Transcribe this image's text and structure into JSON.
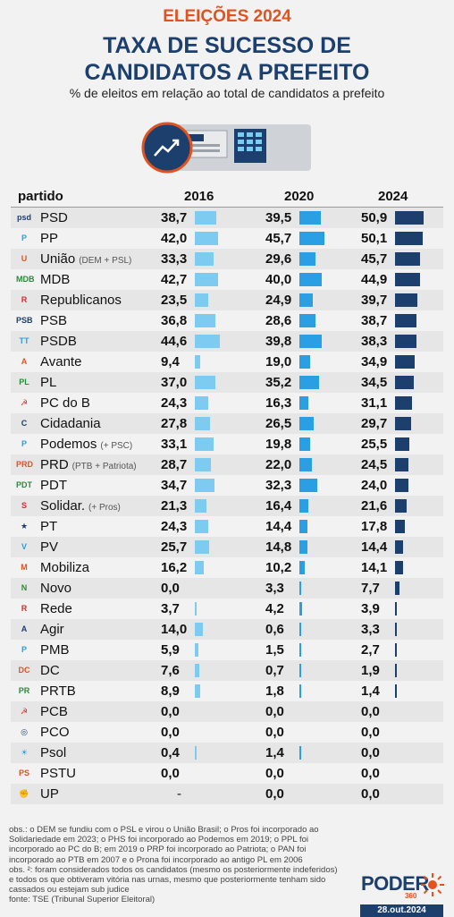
{
  "header": {
    "kicker": "ELEIÇÕES 2024",
    "title_line1": "TAXA DE SUCESSO DE",
    "title_line2": "CANDIDATOS A PREFEITO",
    "subtitle": "% de eleitos em relação ao total de candidatos a prefeito"
  },
  "colors": {
    "y2016": "#7ecbf2",
    "y2020": "#2b9fe3",
    "y2024": "#1c3f6e",
    "accent": "#e0531f"
  },
  "chart_data": {
    "type": "table",
    "columns": [
      "partido",
      "2016",
      "2020",
      "2024"
    ],
    "rows": [
      {
        "party": "PSD",
        "note": "",
        "logo": "psd",
        "v2016": "38,7",
        "v2020": "39,5",
        "v2024": "50,9"
      },
      {
        "party": "PP",
        "note": "",
        "logo": "P",
        "v2016": "42,0",
        "v2020": "45,7",
        "v2024": "50,1"
      },
      {
        "party": "União",
        "note": "(DEM + PSL)",
        "logo": "U",
        "v2016": "33,3",
        "v2020": "29,6",
        "v2024": "45,7"
      },
      {
        "party": "MDB",
        "note": "",
        "logo": "MDB",
        "v2016": "42,7",
        "v2020": "40,0",
        "v2024": "44,9"
      },
      {
        "party": "Republicanos",
        "note": "",
        "logo": "R",
        "v2016": "23,5",
        "v2020": "24,9",
        "v2024": "39,7"
      },
      {
        "party": "PSB",
        "note": "",
        "logo": "PSB",
        "v2016": "36,8",
        "v2020": "28,6",
        "v2024": "38,7"
      },
      {
        "party": "PSDB",
        "note": "",
        "logo": "TT",
        "v2016": "44,6",
        "v2020": "39,8",
        "v2024": "38,3"
      },
      {
        "party": "Avante",
        "note": "",
        "logo": "A",
        "v2016": "9,4",
        "v2020": "19,0",
        "v2024": "34,9"
      },
      {
        "party": "PL",
        "note": "",
        "logo": "PL",
        "v2016": "37,0",
        "v2020": "35,2",
        "v2024": "34,5"
      },
      {
        "party": "PC do B",
        "note": "",
        "logo": "☭",
        "v2016": "24,3",
        "v2020": "16,3",
        "v2024": "31,1"
      },
      {
        "party": "Cidadania",
        "note": "",
        "logo": "C",
        "v2016": "27,8",
        "v2020": "26,5",
        "v2024": "29,7"
      },
      {
        "party": "Podemos",
        "note": "(+ PSC)",
        "logo": "P",
        "v2016": "33,1",
        "v2020": "19,8",
        "v2024": "25,5"
      },
      {
        "party": "PRD",
        "note": "(PTB + Patriota)",
        "logo": "PRD",
        "v2016": "28,7",
        "v2020": "22,0",
        "v2024": "24,5"
      },
      {
        "party": "PDT",
        "note": "",
        "logo": "PDT",
        "v2016": "34,7",
        "v2020": "32,3",
        "v2024": "24,0"
      },
      {
        "party": "Solidar.",
        "note": "(+ Pros)",
        "logo": "S",
        "v2016": "21,3",
        "v2020": "16,4",
        "v2024": "21,6"
      },
      {
        "party": "PT",
        "note": "",
        "logo": "★",
        "v2016": "24,3",
        "v2020": "14,4",
        "v2024": "17,8"
      },
      {
        "party": "PV",
        "note": "",
        "logo": "V",
        "v2016": "25,7",
        "v2020": "14,8",
        "v2024": "14,4"
      },
      {
        "party": "Mobiliza",
        "note": "",
        "logo": "M",
        "v2016": "16,2",
        "v2020": "10,2",
        "v2024": "14,1"
      },
      {
        "party": "Novo",
        "note": "",
        "logo": "N",
        "v2016": "0,0",
        "v2020": "3,3",
        "v2024": "7,7"
      },
      {
        "party": "Rede",
        "note": "",
        "logo": "R",
        "v2016": "3,7",
        "v2020": "4,2",
        "v2024": "3,9"
      },
      {
        "party": "Agir",
        "note": "",
        "logo": "A",
        "v2016": "14,0",
        "v2020": "0,6",
        "v2024": "3,3"
      },
      {
        "party": "PMB",
        "note": "",
        "logo": "P",
        "v2016": "5,9",
        "v2020": "1,5",
        "v2024": "2,7"
      },
      {
        "party": "DC",
        "note": "",
        "logo": "DC",
        "v2016": "7,6",
        "v2020": "0,7",
        "v2024": "1,9"
      },
      {
        "party": "PRTB",
        "note": "",
        "logo": "PR",
        "v2016": "8,9",
        "v2020": "1,8",
        "v2024": "1,4"
      },
      {
        "party": "PCB",
        "note": "",
        "logo": "☭",
        "v2016": "0,0",
        "v2020": "0,0",
        "v2024": "0,0"
      },
      {
        "party": "PCO",
        "note": "",
        "logo": "◎",
        "v2016": "0,0",
        "v2020": "0,0",
        "v2024": "0,0"
      },
      {
        "party": "Psol",
        "note": "",
        "logo": "☀",
        "v2016": "0,4",
        "v2020": "1,4",
        "v2024": "0,0"
      },
      {
        "party": "PSTU",
        "note": "",
        "logo": "PS",
        "v2016": "0,0",
        "v2020": "0,0",
        "v2024": "0,0"
      },
      {
        "party": "UP",
        "note": "",
        "logo": "✊",
        "v2016": "-",
        "v2020": "0,0",
        "v2024": "0,0"
      }
    ]
  },
  "footer": {
    "notes": [
      "obs.: o DEM se fundiu com o PSL e virou o União Brasil; o Pros foi incorporado ao",
      "Solidariedade em 2023; o PHS foi incorporado ao Podemos em 2019; o PPL foi",
      "incorporado ao PC do B; em 2019 o PRP foi incorporado ao Patriota; o PAN foi",
      "incorporado ao PTB em 2007 e o Prona foi incorporado ao antigo PL em 2006",
      "obs. ²: foram considerados todos os candidatos (mesmo os posteriormente indeferidos)",
      "e todos os que obtiveram vitória nas urnas, mesmo que posteriormente tenham sido",
      "cassados ou estejam sub judice",
      "fonte: TSE (Tribunal Superior Eleitoral)"
    ],
    "brand": "PODER",
    "brand_sub": "360",
    "date": "28.out.2024"
  }
}
